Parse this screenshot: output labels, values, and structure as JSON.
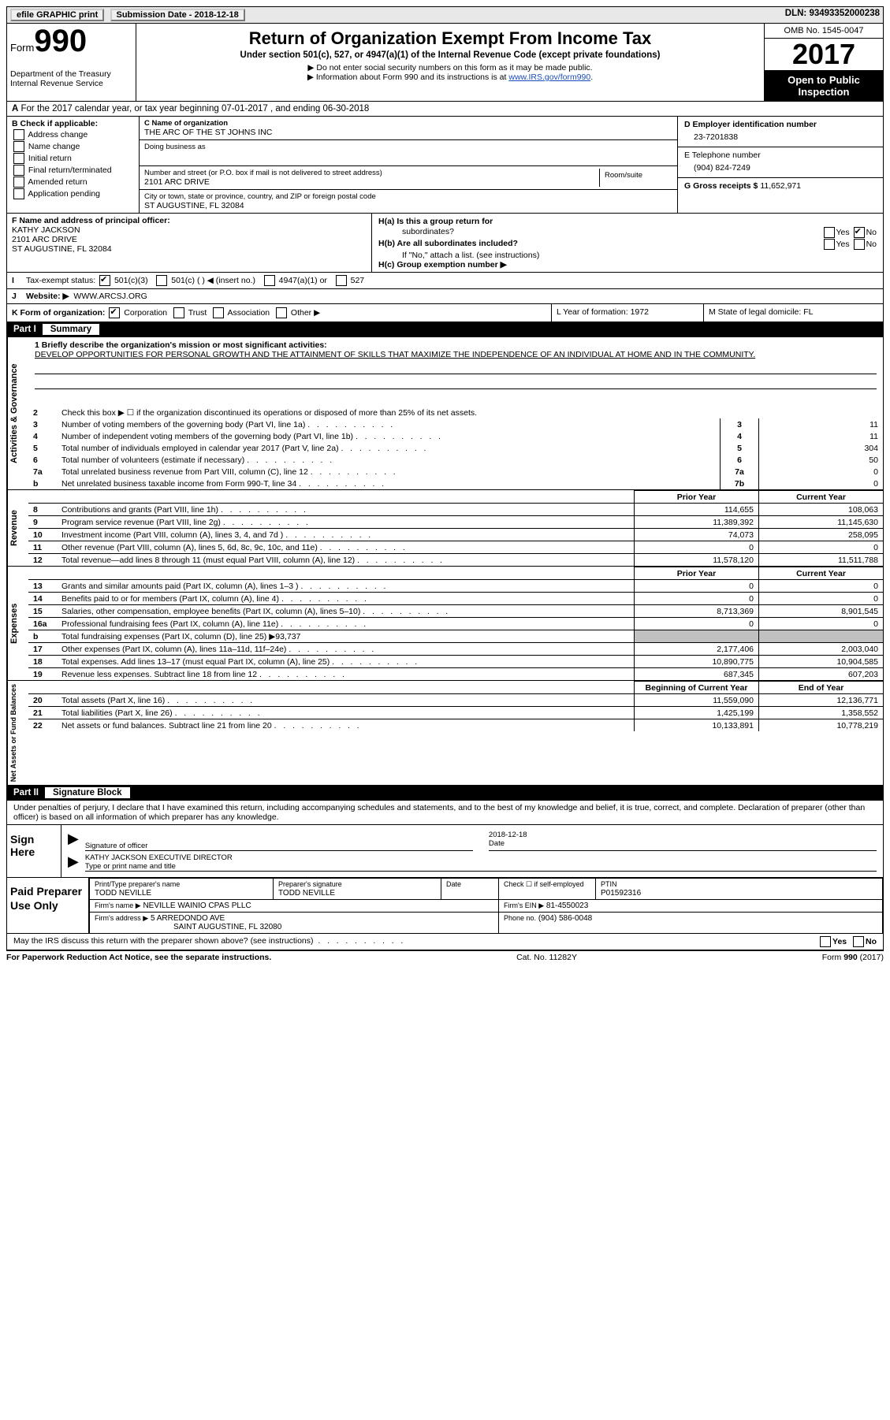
{
  "top": {
    "efile": "efile GRAPHIC print",
    "submission": "Submission Date - 2018-12-18",
    "dln": "DLN: 93493352000238"
  },
  "header": {
    "formLabel": "Form",
    "formNumber": "990",
    "dept": "Department of the Treasury",
    "irs": "Internal Revenue Service",
    "title": "Return of Organization Exempt From Income Tax",
    "sub": "Under section 501(c), 527, or 4947(a)(1) of the Internal Revenue Code (except private foundations)",
    "note1": "▶ Do not enter social security numbers on this form as it may be made public.",
    "note2": "▶ Information about Form 990 and its instructions is at ",
    "link": "www.IRS.gov/form990",
    "omb": "OMB No. 1545-0047",
    "year": "2017",
    "open": "Open to Public Inspection"
  },
  "lineA": "For the 2017 calendar year, or tax year beginning 07-01-2017   , and ending 06-30-2018",
  "colB": {
    "label": "B Check if applicable:",
    "opts": [
      "Address change",
      "Name change",
      "Initial return",
      "Final return/terminated",
      "Amended return",
      "Application pending"
    ]
  },
  "colC": {
    "nameLabel": "C Name of organization",
    "name": "THE ARC OF THE ST JOHNS INC",
    "dbaLabel": "Doing business as",
    "streetLabel": "Number and street (or P.O. box if mail is not delivered to street address)",
    "street": "2101 ARC DRIVE",
    "roomLabel": "Room/suite",
    "cityLabel": "City or town, state or province, country, and ZIP or foreign postal code",
    "city": "ST AUGUSTINE, FL  32084"
  },
  "colD": {
    "einLabel": "D Employer identification number",
    "ein": "23-7201838",
    "phoneLabel": "E Telephone number",
    "phone": "(904) 824-7249",
    "grossLabel": "G Gross receipts $",
    "gross": "11,652,971"
  },
  "colF": {
    "label": "F  Name and address of principal officer:",
    "name": "KATHY JACKSON",
    "street": "2101 ARC DRIVE",
    "city": "ST AUGUSTINE, FL  32084"
  },
  "colH": {
    "ha": "H(a)  Is this a group return for",
    "haSub": "subordinates?",
    "hb": "H(b)  Are all subordinates included?",
    "hbNote": "If \"No,\" attach a list. (see instructions)",
    "hc": "H(c)  Group exemption number ▶"
  },
  "rowI": {
    "label": "Tax-exempt status:",
    "opts": [
      "501(c)(3)",
      "501(c) (   ) ◀ (insert no.)",
      "4947(a)(1) or",
      "527"
    ]
  },
  "rowJ": {
    "label": "Website: ▶",
    "value": "WWW.ARCSJ.ORG"
  },
  "rowK": {
    "label": "K Form of organization:",
    "opts": [
      "Corporation",
      "Trust",
      "Association",
      "Other ▶"
    ],
    "l": "L Year of formation: 1972",
    "m": "M State of legal domicile: FL"
  },
  "part1": {
    "title": "Part I",
    "subtitle": "Summary"
  },
  "mission": {
    "label": "1   Briefly describe the organization's mission or most significant activities:",
    "text": "DEVELOP OPPORTUNITIES FOR PERSONAL GROWTH AND THE ATTAINMENT OF SKILLS THAT MAXIMIZE THE INDEPENDENCE OF AN INDIVIDUAL AT HOME AND IN THE COMMUNITY."
  },
  "governance": [
    {
      "n": "2",
      "d": "Check this box ▶ ☐  if the organization discontinued its operations or disposed of more than 25% of its net assets.",
      "num": "",
      "v": ""
    },
    {
      "n": "3",
      "d": "Number of voting members of the governing body (Part VI, line 1a)",
      "num": "3",
      "v": "11"
    },
    {
      "n": "4",
      "d": "Number of independent voting members of the governing body (Part VI, line 1b)",
      "num": "4",
      "v": "11"
    },
    {
      "n": "5",
      "d": "Total number of individuals employed in calendar year 2017 (Part V, line 2a)",
      "num": "5",
      "v": "304"
    },
    {
      "n": "6",
      "d": "Total number of volunteers (estimate if necessary)",
      "num": "6",
      "v": "50"
    },
    {
      "n": "7a",
      "d": "Total unrelated business revenue from Part VIII, column (C), line 12",
      "num": "7a",
      "v": "0"
    },
    {
      "n": "b",
      "d": "Net unrelated business taxable income from Form 990-T, line 34",
      "num": "7b",
      "v": "0"
    }
  ],
  "revHeader": {
    "prior": "Prior Year",
    "curr": "Current Year"
  },
  "revenue": [
    {
      "n": "8",
      "d": "Contributions and grants (Part VIII, line 1h)",
      "p": "114,655",
      "c": "108,063"
    },
    {
      "n": "9",
      "d": "Program service revenue (Part VIII, line 2g)",
      "p": "11,389,392",
      "c": "11,145,630"
    },
    {
      "n": "10",
      "d": "Investment income (Part VIII, column (A), lines 3, 4, and 7d )",
      "p": "74,073",
      "c": "258,095"
    },
    {
      "n": "11",
      "d": "Other revenue (Part VIII, column (A), lines 5, 6d, 8c, 9c, 10c, and 11e)",
      "p": "0",
      "c": "0"
    },
    {
      "n": "12",
      "d": "Total revenue—add lines 8 through 11 (must equal Part VIII, column (A), line 12)",
      "p": "11,578,120",
      "c": "11,511,788"
    }
  ],
  "expenses": [
    {
      "n": "13",
      "d": "Grants and similar amounts paid (Part IX, column (A), lines 1–3 )",
      "p": "0",
      "c": "0"
    },
    {
      "n": "14",
      "d": "Benefits paid to or for members (Part IX, column (A), line 4)",
      "p": "0",
      "c": "0"
    },
    {
      "n": "15",
      "d": "Salaries, other compensation, employee benefits (Part IX, column (A), lines 5–10)",
      "p": "8,713,369",
      "c": "8,901,545"
    },
    {
      "n": "16a",
      "d": "Professional fundraising fees (Part IX, column (A), line 11e)",
      "p": "0",
      "c": "0"
    },
    {
      "n": "b",
      "d": "Total fundraising expenses (Part IX, column (D), line 25) ▶93,737",
      "p": "",
      "c": "",
      "shaded": true
    },
    {
      "n": "17",
      "d": "Other expenses (Part IX, column (A), lines 11a–11d, 11f–24e)",
      "p": "2,177,406",
      "c": "2,003,040"
    },
    {
      "n": "18",
      "d": "Total expenses. Add lines 13–17 (must equal Part IX, column (A), line 25)",
      "p": "10,890,775",
      "c": "10,904,585"
    },
    {
      "n": "19",
      "d": "Revenue less expenses. Subtract line 18 from line 12",
      "p": "687,345",
      "c": "607,203"
    }
  ],
  "netHeader": {
    "prior": "Beginning of Current Year",
    "curr": "End of Year"
  },
  "netassets": [
    {
      "n": "20",
      "d": "Total assets (Part X, line 16)",
      "p": "11,559,090",
      "c": "12,136,771"
    },
    {
      "n": "21",
      "d": "Total liabilities (Part X, line 26)",
      "p": "1,425,199",
      "c": "1,358,552"
    },
    {
      "n": "22",
      "d": "Net assets or fund balances. Subtract line 21 from line 20",
      "p": "10,133,891",
      "c": "10,778,219"
    }
  ],
  "part2": {
    "title": "Part II",
    "subtitle": "Signature Block"
  },
  "sigText": "Under penalties of perjury, I declare that I have examined this return, including accompanying schedules and statements, and to the best of my knowledge and belief, it is true, correct, and complete. Declaration of preparer (other than officer) is based on all information of which preparer has any knowledge.",
  "sign": {
    "label": "Sign Here",
    "sigOfficer": "Signature of officer",
    "date": "2018-12-18",
    "dateLabel": "Date",
    "name": "KATHY JACKSON  EXECUTIVE DIRECTOR",
    "nameLabel": "Type or print name and title"
  },
  "prep": {
    "label": "Paid Preparer Use Only",
    "nameLabel": "Print/Type preparer's name",
    "name": "TODD NEVILLE",
    "sigLabel": "Preparer's signature",
    "sig": "TODD NEVILLE",
    "dateLabel": "Date",
    "checkLabel": "Check ☐ if self-employed",
    "ptinLabel": "PTIN",
    "ptin": "P01592316",
    "firmNameLabel": "Firm's name      ▶",
    "firmName": "NEVILLE WAINIO CPAS PLLC",
    "firmEinLabel": "Firm's EIN ▶",
    "firmEin": "81-4550023",
    "firmAddrLabel": "Firm's address ▶",
    "firmAddr": "5 ARREDONDO AVE",
    "firmCity": "SAINT AUGUSTINE, FL  32080",
    "phoneLabel": "Phone no.",
    "phone": "(904) 586-0048"
  },
  "discuss": "May the IRS discuss this return with the preparer shown above? (see instructions)",
  "footer": {
    "pra": "For Paperwork Reduction Act Notice, see the separate instructions.",
    "cat": "Cat. No. 11282Y",
    "form": "Form 990 (2017)"
  },
  "vertLabels": {
    "gov": "Activities & Governance",
    "rev": "Revenue",
    "exp": "Expenses",
    "net": "Net Assets or Fund Balances"
  }
}
